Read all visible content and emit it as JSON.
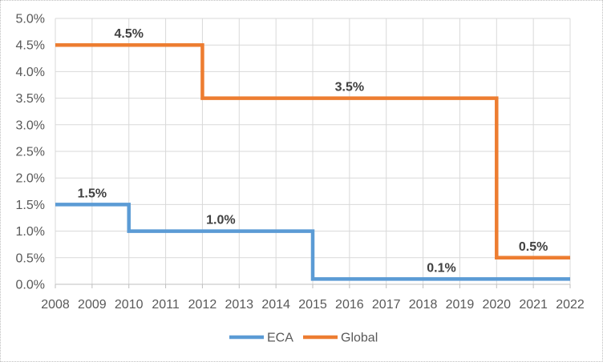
{
  "chart_data": {
    "type": "line",
    "step": true,
    "title": "",
    "xlabel": "",
    "ylabel": "",
    "x_range": [
      2008,
      2022
    ],
    "x_tick_labels": [
      "2008",
      "2009",
      "2010",
      "2011",
      "2012",
      "2013",
      "2014",
      "2015",
      "2016",
      "2017",
      "2018",
      "2019",
      "2020",
      "2021",
      "2022"
    ],
    "ylim": [
      0,
      5
    ],
    "y_step": 0.5,
    "y_tick_labels": [
      "0.0%",
      "0.5%",
      "1.0%",
      "1.5%",
      "2.0%",
      "2.5%",
      "3.0%",
      "3.5%",
      "4.0%",
      "4.5%",
      "5.0%"
    ],
    "grid": true,
    "legend_position": "bottom-center",
    "series": [
      {
        "name": "ECA",
        "color": "#5B9BD5",
        "segments": [
          {
            "from": 2008,
            "to": 2010,
            "value": 1.5,
            "label": "1.5%"
          },
          {
            "from": 2010,
            "to": 2015,
            "value": 1.0,
            "label": "1.0%"
          },
          {
            "from": 2015,
            "to": 2022,
            "value": 0.1,
            "label": "0.1%"
          }
        ]
      },
      {
        "name": "Global",
        "color": "#ED7D31",
        "segments": [
          {
            "from": 2008,
            "to": 2012,
            "value": 4.5,
            "label": "4.5%"
          },
          {
            "from": 2012,
            "to": 2020,
            "value": 3.5,
            "label": "3.5%"
          },
          {
            "from": 2020,
            "to": 2022,
            "value": 0.5,
            "label": "0.5%"
          }
        ]
      }
    ],
    "colors": {
      "gridline": "#D9D9D9",
      "axis_line": "#BFBFBF",
      "tick_label": "#595959",
      "data_label": "#404040",
      "legend_label": "#595959",
      "background": "#FFFFFF"
    }
  }
}
